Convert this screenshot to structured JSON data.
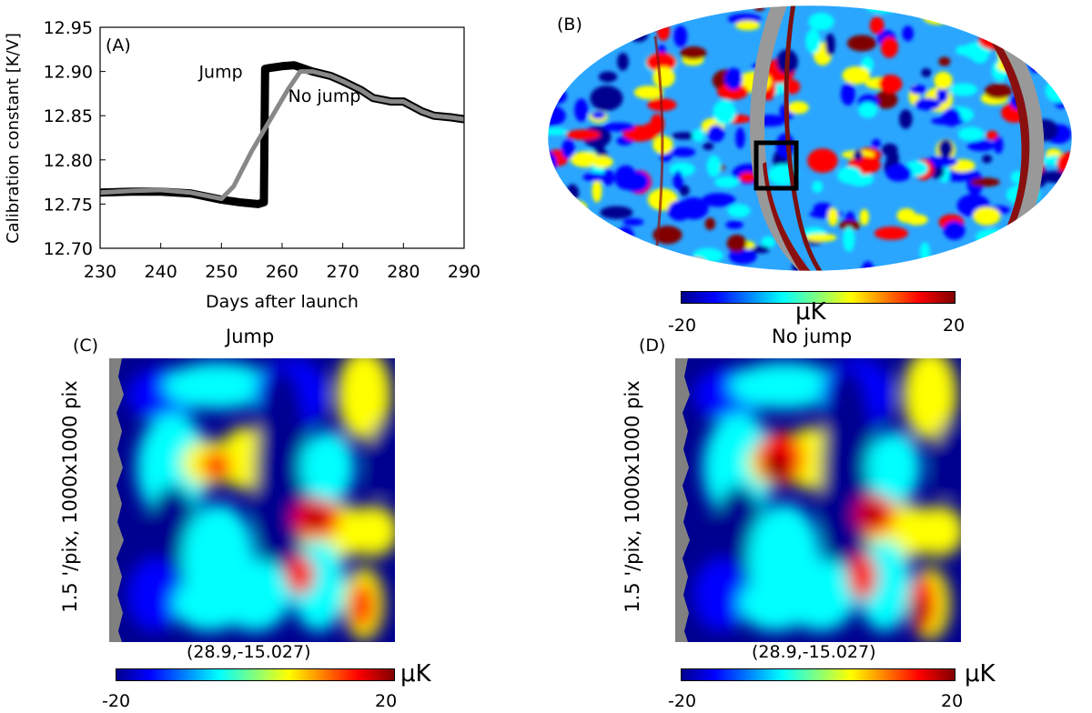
{
  "panels": {
    "a": {
      "label": "(A)"
    },
    "b": {
      "label": "(B)"
    },
    "c": {
      "label": "(C)",
      "title": "Jump",
      "ylabel": "1.5 '/pix, 1000x1000 pix",
      "coord": "(28.9,-15.027)"
    },
    "d": {
      "label": "(D)",
      "title": "No jump",
      "ylabel": "1.5 '/pix, 1000x1000 pix",
      "coord": "(28.9,-15.027)"
    }
  },
  "colorbars": {
    "b": {
      "min": "-20",
      "max": "20",
      "unit": "μK"
    },
    "c": {
      "min": "-20",
      "max": "20",
      "unit": "μK"
    },
    "d": {
      "min": "-20",
      "max": "20",
      "unit": "μK"
    }
  },
  "colormap": [
    "#00008f",
    "#0000ff",
    "#00ffff",
    "#ffff00",
    "#ff0000",
    "#800000"
  ],
  "chart_data": {
    "type": "line",
    "xlabel": "Days after launch",
    "ylabel": "Calibration constant [K/V]",
    "xlim": [
      230,
      290
    ],
    "ylim": [
      12.7,
      12.95
    ],
    "xticks": [
      "230",
      "240",
      "250",
      "260",
      "270",
      "280",
      "290"
    ],
    "yticks": [
      "12.70",
      "12.75",
      "12.80",
      "12.85",
      "12.90",
      "12.95"
    ],
    "series": [
      {
        "name": "Jump",
        "color": "#000000",
        "x": [
          230,
          235,
          240,
          245,
          250,
          253,
          256,
          257,
          257.2,
          258,
          260,
          262,
          265,
          268,
          270,
          273,
          275,
          278,
          280,
          283,
          285,
          288,
          290
        ],
        "y": [
          12.763,
          12.764,
          12.764,
          12.762,
          12.755,
          12.752,
          12.75,
          12.752,
          12.903,
          12.904,
          12.906,
          12.907,
          12.9,
          12.895,
          12.889,
          12.879,
          12.87,
          12.866,
          12.866,
          12.855,
          12.85,
          12.848,
          12.846
        ]
      },
      {
        "name": "No jump",
        "color": "#888888",
        "x": [
          230,
          235,
          240,
          245,
          250,
          252,
          255,
          258,
          261,
          263,
          265,
          268,
          270,
          273,
          275,
          278,
          280,
          283,
          285,
          288,
          290
        ],
        "y": [
          12.763,
          12.765,
          12.766,
          12.763,
          12.756,
          12.77,
          12.81,
          12.845,
          12.88,
          12.9,
          12.9,
          12.895,
          12.889,
          12.879,
          12.87,
          12.866,
          12.866,
          12.855,
          12.85,
          12.848,
          12.846
        ]
      }
    ],
    "annotations": [
      {
        "text": "Jump",
        "x": 253.5,
        "y": 12.9
      },
      {
        "text": "No jump",
        "x": 261,
        "y": 12.873
      }
    ]
  }
}
